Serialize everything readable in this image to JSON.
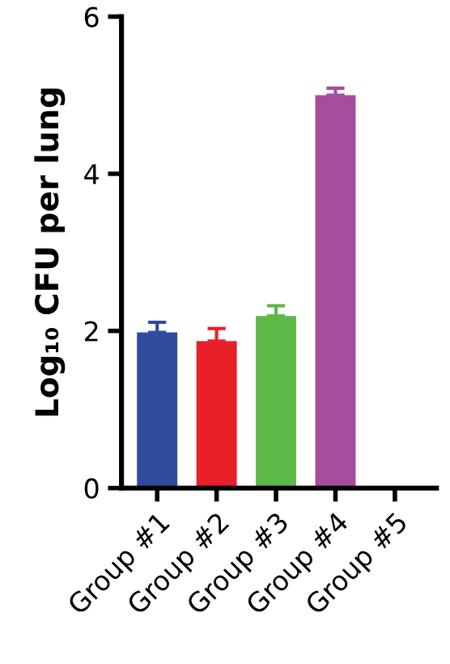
{
  "chart_data": {
    "type": "bar",
    "ylabel": "Log₁₀ CFU per lung",
    "categories": [
      "Group #1",
      "Group #2",
      "Group #3",
      "Group #4",
      "Group #5"
    ],
    "values": [
      1.98,
      1.87,
      2.19,
      5.0,
      null
    ],
    "colors": [
      "#2f4c9c",
      "#e8202a",
      "#5cb947",
      "#a64d9f",
      null
    ],
    "errors": [
      [
        1.98,
        2.11
      ],
      [
        1.87,
        2.03
      ],
      [
        2.19,
        2.32
      ],
      [
        5.0,
        5.09
      ],
      null
    ],
    "ylim": [
      0,
      6
    ],
    "yticks": [
      0,
      2,
      4,
      6
    ],
    "grid": false,
    "legend": false
  }
}
